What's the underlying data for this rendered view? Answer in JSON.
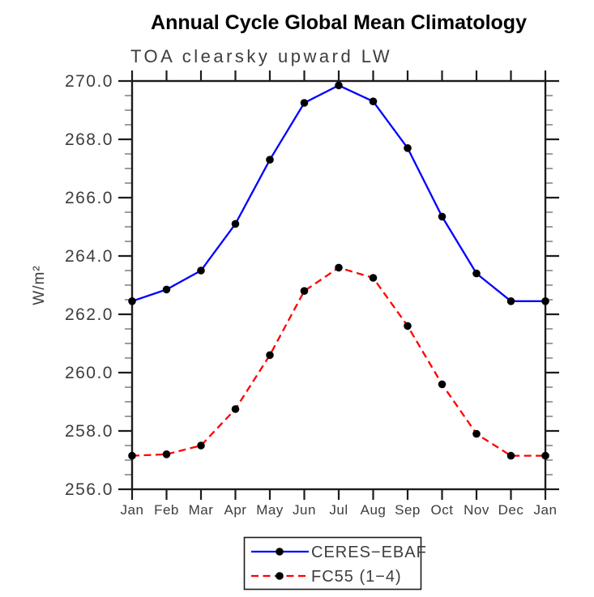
{
  "colors": {
    "background": "#ffffff",
    "frame": "#1c1c1c",
    "minor_tick": "#858585",
    "tick_text": "#3d3d3d",
    "title_text": "#000000",
    "series_blue": "#0000ff",
    "series_red": "#ff0000",
    "marker_black": "#000000"
  },
  "chart_data": {
    "type": "line",
    "title": "Annual Cycle Global Mean Climatology",
    "subtitle": "TOA clearsky upward LW",
    "xlabel": "",
    "ylabel": "W/m²",
    "categories": [
      "Jan",
      "Feb",
      "Mar",
      "Apr",
      "May",
      "Jun",
      "Jul",
      "Aug",
      "Sep",
      "Oct",
      "Nov",
      "Dec",
      "Jan"
    ],
    "ylim": [
      256.0,
      270.0
    ],
    "ytick_step": 2.0,
    "ytick_minor_step": 0.5,
    "ytick_labels": [
      "256.0",
      "258.0",
      "260.0",
      "262.0",
      "264.0",
      "266.0",
      "268.0",
      "270.0"
    ],
    "grid": false,
    "series": [
      {
        "name": "CERES-EBAF",
        "line_color": "#0000ff",
        "line_style": "solid",
        "marker": "filled-circle",
        "marker_color": "#000000",
        "values": [
          262.45,
          262.85,
          263.5,
          265.1,
          267.3,
          269.25,
          269.85,
          269.3,
          267.7,
          265.35,
          263.4,
          262.45,
          262.45
        ]
      },
      {
        "name": "FC55 (1-4)",
        "line_color": "#ff0000",
        "line_style": "dashed",
        "marker": "filled-circle",
        "marker_color": "#000000",
        "values": [
          257.15,
          257.2,
          257.5,
          258.75,
          260.6,
          262.8,
          263.6,
          263.25,
          261.6,
          259.6,
          257.9,
          257.15,
          257.15
        ]
      }
    ],
    "legend": {
      "position": "bottom-center",
      "entries": [
        {
          "label": "CERES−EBAF"
        },
        {
          "label": "FC55 (1−4)"
        }
      ]
    }
  }
}
